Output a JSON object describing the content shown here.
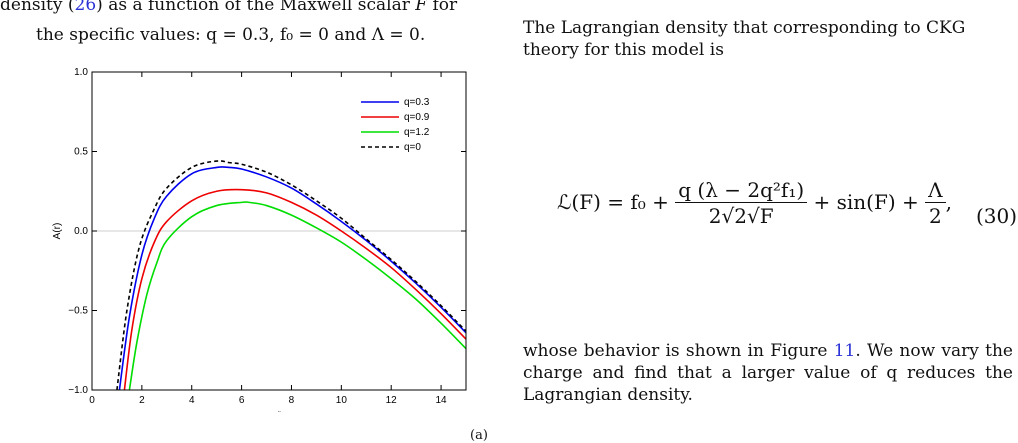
{
  "left_text": {
    "line1_pre": "density (",
    "line1_ref": "26",
    "line1_post": ") as a function of the Maxwell scalar ",
    "line1_var": "F",
    "line1_end": " for",
    "line2": "the specific values: q = 0.3, f₀ = 0 and Λ = 0."
  },
  "right_top": {
    "text": "The Lagrangian density that corresponding to CKG theory for this model is"
  },
  "equation": {
    "lhs": "ℒ(F) = f₀ + ",
    "numerator": "q (λ − 2q²f₁)",
    "denominator": "2√2√F",
    "mid": " + sin(F) + ",
    "frac2_num": "Λ",
    "frac2_den": "2",
    "tail": ",",
    "number": "(30)"
  },
  "right_bottom": {
    "pre": "whose behavior is shown in Figure ",
    "ref": "11",
    "post": ".  We now vary the charge and find that a larger value of q reduces the Lagrangian density."
  },
  "figure_sub": "(a)",
  "chart_data": {
    "type": "line",
    "xlabel": "r",
    "ylabel": "A(r)",
    "xlim": [
      0,
      15
    ],
    "ylim": [
      -1.0,
      1.0
    ],
    "xticks": [
      0,
      2,
      4,
      6,
      8,
      10,
      12,
      14
    ],
    "yticks": [
      -1.0,
      -0.5,
      0.0,
      0.5,
      1.0
    ],
    "ytick_labels": [
      "−1.0",
      "−0.5",
      "0.0",
      "0.5",
      "1.0"
    ],
    "legend_position": "top-right",
    "series": [
      {
        "name": "q=0.3",
        "color": "#0000ee",
        "dash": "solid",
        "x": [
          1.1,
          1.5,
          2,
          2.5,
          3,
          4,
          5,
          5.5,
          6,
          7,
          8,
          9,
          10,
          11,
          12,
          13,
          14,
          15
        ],
        "y": [
          -1.0,
          -0.54,
          -0.15,
          0.08,
          0.22,
          0.36,
          0.4,
          0.4,
          0.39,
          0.34,
          0.27,
          0.17,
          0.06,
          -0.06,
          -0.19,
          -0.33,
          -0.48,
          -0.64
        ]
      },
      {
        "name": "q=0.9",
        "color": "#ee0000",
        "dash": "solid",
        "x": [
          1.3,
          1.6,
          2,
          2.5,
          3,
          4,
          5,
          6,
          7,
          8,
          9,
          10,
          11,
          12,
          13,
          14,
          15
        ],
        "y": [
          -1.0,
          -0.62,
          -0.3,
          -0.07,
          0.06,
          0.19,
          0.25,
          0.26,
          0.24,
          0.18,
          0.1,
          0.0,
          -0.11,
          -0.23,
          -0.37,
          -0.52,
          -0.68
        ]
      },
      {
        "name": "q=1.2",
        "color": "#00dd00",
        "dash": "solid",
        "x": [
          1.5,
          1.8,
          2.2,
          2.6,
          3,
          4,
          5,
          6,
          6.3,
          7,
          8,
          9,
          10,
          11,
          12,
          13,
          14,
          15
        ],
        "y": [
          -1.0,
          -0.7,
          -0.4,
          -0.2,
          -0.06,
          0.09,
          0.16,
          0.18,
          0.18,
          0.16,
          0.1,
          0.02,
          -0.07,
          -0.18,
          -0.3,
          -0.43,
          -0.58,
          -0.74
        ]
      },
      {
        "name": "q=0",
        "color": "#000000",
        "dash": "dashed",
        "x": [
          1.0,
          1.4,
          1.9,
          2.5,
          3,
          4,
          5,
          5.5,
          6,
          7,
          8,
          9,
          10,
          11,
          12,
          13,
          14,
          15
        ],
        "y": [
          -1.0,
          -0.5,
          -0.1,
          0.14,
          0.27,
          0.4,
          0.44,
          0.43,
          0.42,
          0.37,
          0.29,
          0.19,
          0.08,
          -0.05,
          -0.18,
          -0.32,
          -0.47,
          -0.63
        ]
      }
    ]
  }
}
